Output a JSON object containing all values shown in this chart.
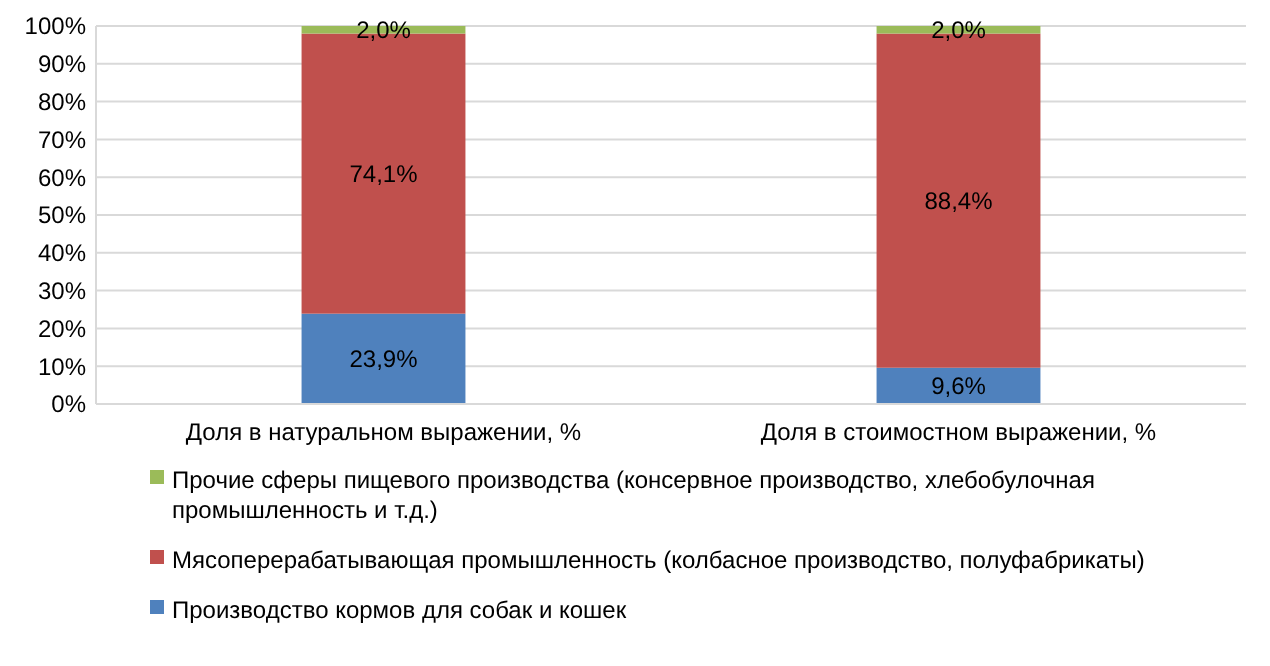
{
  "chart_data": {
    "type": "bar",
    "stacked": true,
    "categories": [
      "Доля в натуральном выражении, %",
      "Доля в стоимостном выражении, %"
    ],
    "series": [
      {
        "name": "Производство кормов для собак и кошек",
        "color": "#4f81bd",
        "values": [
          23.9,
          9.6
        ],
        "value_labels": [
          "23,9%",
          "9,6%"
        ]
      },
      {
        "name": "Мясоперерабатывающая промышленность (колбасное производство, полуфабрикаты)",
        "color": "#c0504d",
        "values": [
          74.1,
          88.4
        ],
        "value_labels": [
          "74,1%",
          "88,4%"
        ]
      },
      {
        "name": "Прочие сферы пищевого производства (консервное производство, хлебобулочная промышленность и т.д.)",
        "color": "#9bbb59",
        "values": [
          2.0,
          2.0
        ],
        "value_labels": [
          "2,0%",
          "2,0%"
        ]
      }
    ],
    "ylim": [
      0,
      100
    ],
    "yticks": [
      {
        "value": 0,
        "label": "0%"
      },
      {
        "value": 10,
        "label": "10%"
      },
      {
        "value": 20,
        "label": "20%"
      },
      {
        "value": 30,
        "label": "30%"
      },
      {
        "value": 40,
        "label": "40%"
      },
      {
        "value": 50,
        "label": "50%"
      },
      {
        "value": 60,
        "label": "60%"
      },
      {
        "value": 70,
        "label": "70%"
      },
      {
        "value": 80,
        "label": "80%"
      },
      {
        "value": 90,
        "label": "90%"
      },
      {
        "value": 100,
        "label": "100%"
      }
    ],
    "grid": "y",
    "legend": "bottom"
  }
}
